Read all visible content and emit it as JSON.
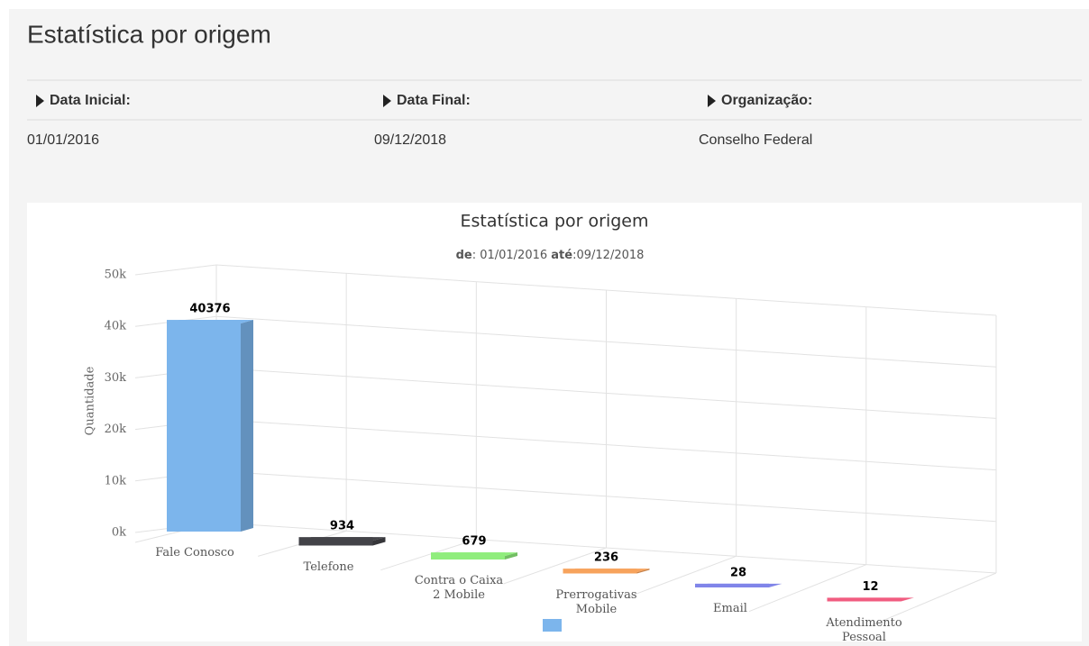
{
  "header": {
    "title": "Estatística por origem"
  },
  "filters": [
    {
      "label": "Data Inicial:",
      "value": "01/01/2016"
    },
    {
      "label": "Data Final:",
      "value": "09/12/2018"
    },
    {
      "label": "Organização:",
      "value": "Conselho Federal"
    }
  ],
  "chart_data": {
    "type": "bar3d",
    "title": "Estatística por origem",
    "subtitle": [
      "de",
      ": 01/01/2016 ",
      "até",
      ":09/12/2018"
    ],
    "y_label": "Quantidade",
    "categories": [
      "Fale Conosco",
      "Telefone",
      "Contra o Caixa 2 Mobile",
      "Prerrogativas Mobile",
      "Email",
      "Atendimento Pessoal"
    ],
    "values": [
      40376,
      934,
      679,
      236,
      28,
      12
    ],
    "colors": [
      "#7cb5ec",
      "#434348",
      "#90ed7d",
      "#f7a35c",
      "#8085e9",
      "#f15c80"
    ],
    "ylim": [
      0,
      50000
    ],
    "yticks": [
      {
        "value": 0,
        "label": "0k"
      },
      {
        "value": 10000,
        "label": "10k"
      },
      {
        "value": 20000,
        "label": "20k"
      },
      {
        "value": 30000,
        "label": "30k"
      },
      {
        "value": 40000,
        "label": "40k"
      },
      {
        "value": 50000,
        "label": "50k"
      }
    ],
    "grid": true
  }
}
